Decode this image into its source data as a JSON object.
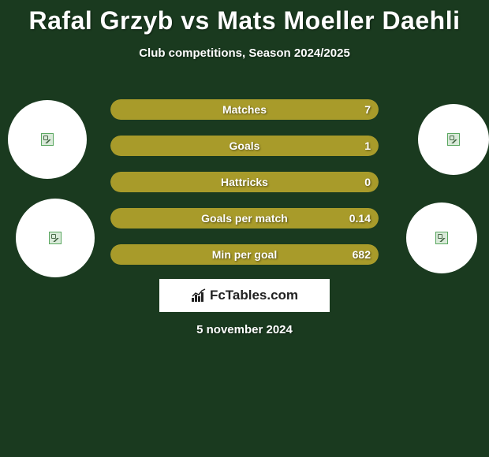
{
  "title": "Rafal Grzyb vs Mats Moeller Daehli",
  "subtitle": "Club competitions, Season 2024/2025",
  "date_text": "5 november 2024",
  "logo_text": "FcTables.com",
  "colors": {
    "background": "#1a3a1f",
    "bar_fill": "#a89b2a",
    "bar_track": "#2d4a31",
    "circle_bg": "#ffffff",
    "text": "#ffffff"
  },
  "stats": [
    {
      "label": "Matches",
      "value": "7",
      "fill_pct": 100
    },
    {
      "label": "Goals",
      "value": "1",
      "fill_pct": 100
    },
    {
      "label": "Hattricks",
      "value": "0",
      "fill_pct": 100
    },
    {
      "label": "Goals per match",
      "value": "0.14",
      "fill_pct": 100
    },
    {
      "label": "Min per goal",
      "value": "682",
      "fill_pct": 100
    }
  ]
}
